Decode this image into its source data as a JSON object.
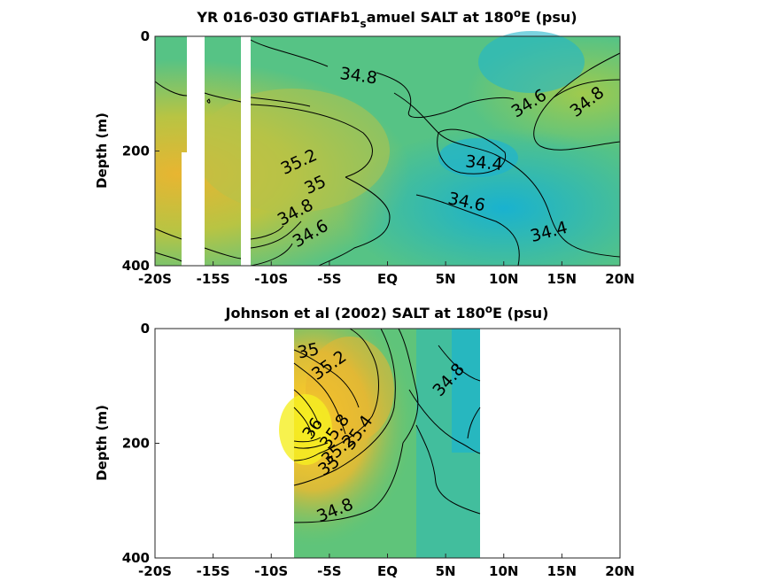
{
  "chart_data": [
    {
      "type": "heatmap",
      "title": {
        "main": "YR 016-030 GTIAFb1",
        "sub": "s",
        "rest": "amuel SALT at 180",
        "sup": "o",
        "tail": "E (psu)"
      },
      "ylabel": "Depth (m)",
      "xlabel": "",
      "x_ticks": [
        "-20S",
        "-15S",
        "-10S",
        "-5S",
        "EQ",
        "5N",
        "10N",
        "15N",
        "20N"
      ],
      "x_values": [
        -20,
        -15,
        -10,
        -5,
        0,
        5,
        10,
        15,
        20
      ],
      "y_ticks": [
        "0",
        "200",
        "400"
      ],
      "y_values": [
        0,
        200,
        400
      ],
      "xlim": [
        -20,
        20
      ],
      "ylim": [
        400,
        0
      ],
      "grid": false,
      "contour_labels": [
        {
          "text": "34.8",
          "lat": -2.5,
          "depth": 70,
          "angle": 8
        },
        {
          "text": "34.6",
          "lat": 12.2,
          "depth": 118,
          "angle": -32
        },
        {
          "text": "34.8",
          "lat": 17.2,
          "depth": 115,
          "angle": -38
        },
        {
          "text": "34.4",
          "lat": 8.3,
          "depth": 222,
          "angle": 5
        },
        {
          "text": "35.2",
          "lat": -7.6,
          "depth": 220,
          "angle": -25
        },
        {
          "text": "35",
          "lat": -6.2,
          "depth": 260,
          "angle": -25
        },
        {
          "text": "34.8",
          "lat": -7.9,
          "depth": 308,
          "angle": -28
        },
        {
          "text": "34.6",
          "lat": -6.6,
          "depth": 345,
          "angle": -30
        },
        {
          "text": "34.6",
          "lat": 6.8,
          "depth": 290,
          "angle": 12
        },
        {
          "text": "34.4",
          "lat": 13.9,
          "depth": 342,
          "angle": -15
        }
      ]
    },
    {
      "type": "heatmap",
      "title": {
        "main": "Johnson et al (2002) SALT at 180",
        "sup": "o",
        "tail": "E (psu)"
      },
      "ylabel": "Depth (m)",
      "xlabel": "",
      "x_ticks": [
        "-20S",
        "-15S",
        "-10S",
        "-5S",
        "EQ",
        "5N",
        "10N",
        "15N",
        "20N"
      ],
      "x_values": [
        -20,
        -15,
        -10,
        -5,
        0,
        5,
        10,
        15,
        20
      ],
      "y_ticks": [
        "0",
        "200",
        "400"
      ],
      "y_values": [
        0,
        200,
        400
      ],
      "xlim": [
        -20,
        20
      ],
      "ylim": [
        400,
        0
      ],
      "data_lat_range": [
        -8,
        8
      ],
      "grid": false,
      "contour_labels": [
        {
          "text": "35",
          "lat": -6.8,
          "depth": 40,
          "angle": -12
        },
        {
          "text": "35.2",
          "lat": -5.0,
          "depth": 65,
          "angle": -35
        },
        {
          "text": "34.8",
          "lat": 5.3,
          "depth": 90,
          "angle": -48
        },
        {
          "text": "36",
          "lat": -6.4,
          "depth": 175,
          "angle": -55
        },
        {
          "text": "35.8",
          "lat": -4.5,
          "depth": 180,
          "angle": -55
        },
        {
          "text": "35.4",
          "lat": -2.5,
          "depth": 182,
          "angle": -55
        },
        {
          "text": "35.2",
          "lat": -4.2,
          "depth": 212,
          "angle": -40
        },
        {
          "text": "35",
          "lat": -5.0,
          "depth": 240,
          "angle": -35
        },
        {
          "text": "34.8",
          "lat": -4.5,
          "depth": 318,
          "angle": -22
        }
      ]
    }
  ]
}
